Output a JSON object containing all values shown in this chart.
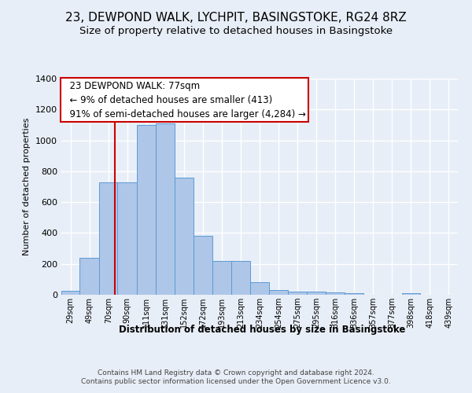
{
  "title1": "23, DEWPOND WALK, LYCHPIT, BASINGSTOKE, RG24 8RZ",
  "title2": "Size of property relative to detached houses in Basingstoke",
  "xlabel": "Distribution of detached houses by size in Basingstoke",
  "ylabel": "Number of detached properties",
  "footer1": "Contains HM Land Registry data © Crown copyright and database right 2024.",
  "footer2": "Contains public sector information licensed under the Open Government Licence v3.0.",
  "annotation_title": "23 DEWPOND WALK: 77sqm",
  "annotation_line1": "← 9% of detached houses are smaller (413)",
  "annotation_line2": "91% of semi-detached houses are larger (4,284) →",
  "bar_color": "#aec6e8",
  "bar_edge_color": "#5b9bd5",
  "ref_line_color": "#cc0000",
  "ref_line_x": 77,
  "categories": [
    "29sqm",
    "49sqm",
    "70sqm",
    "90sqm",
    "111sqm",
    "131sqm",
    "152sqm",
    "172sqm",
    "193sqm",
    "213sqm",
    "234sqm",
    "254sqm",
    "275sqm",
    "295sqm",
    "316sqm",
    "336sqm",
    "357sqm",
    "377sqm",
    "398sqm",
    "418sqm",
    "439sqm"
  ],
  "bin_edges": [
    19,
    39,
    60,
    80,
    101,
    121,
    142,
    162,
    183,
    203,
    224,
    244,
    265,
    285,
    306,
    326,
    347,
    367,
    388,
    408,
    429,
    449
  ],
  "values": [
    25,
    240,
    730,
    730,
    1100,
    1110,
    760,
    380,
    220,
    220,
    80,
    30,
    20,
    20,
    15,
    10,
    0,
    0,
    10,
    0,
    0
  ],
  "ylim": [
    0,
    1400
  ],
  "yticks": [
    0,
    200,
    400,
    600,
    800,
    1000,
    1200,
    1400
  ],
  "background_color": "#e8eef7",
  "plot_background": "#e8eef7",
  "grid_color": "#ffffff",
  "title_fontsize": 11,
  "subtitle_fontsize": 9.5,
  "annotation_fontsize": 8.5
}
